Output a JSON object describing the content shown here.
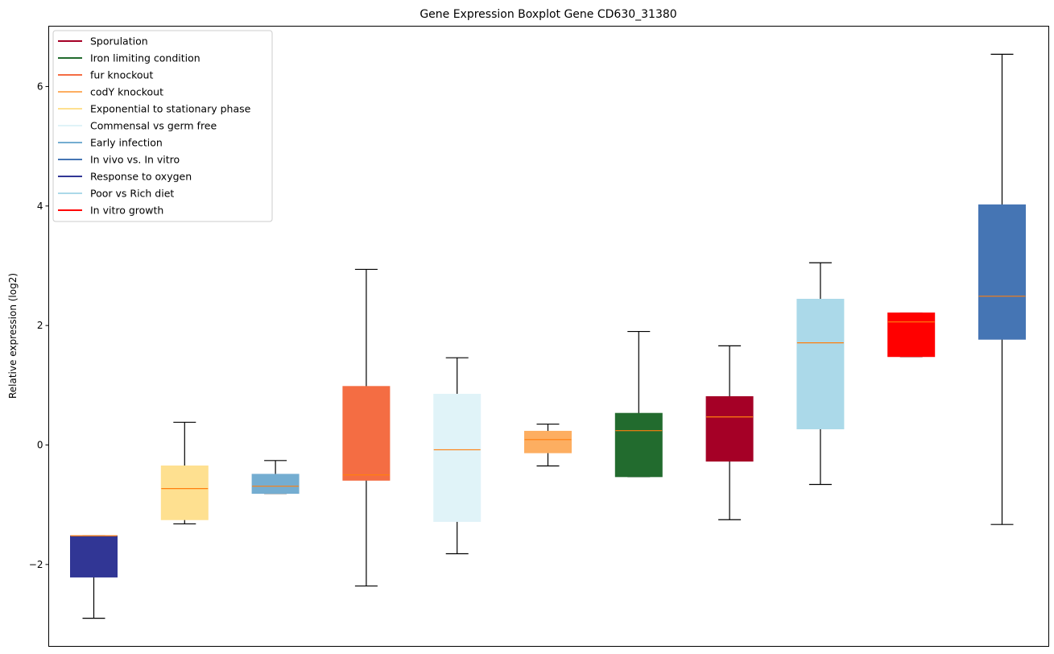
{
  "chart_data": {
    "type": "boxplot",
    "title": "Gene Expression Boxplot Gene CD630_31380",
    "xlabel": "",
    "ylabel": "Relative expression (log2)",
    "ylim": [
      -3.37,
      7.01
    ],
    "yticks": [
      -2,
      0,
      2,
      4,
      6
    ],
    "ytick_labels": [
      "−2",
      "0",
      "2",
      "4",
      "6"
    ],
    "grid": false,
    "legend_position": "top-left",
    "median_color": "#ff7f0e",
    "legend": [
      {
        "label": "Sporulation",
        "color": "#a50026"
      },
      {
        "label": "Iron limiting condition",
        "color": "#226b2e"
      },
      {
        "label": "fur knockout",
        "color": "#f46d43"
      },
      {
        "label": "codY knockout",
        "color": "#fdae61"
      },
      {
        "label": "Exponential to stationary phase",
        "color": "#fee090"
      },
      {
        "label": "Commensal vs germ free",
        "color": "#e0f3f8"
      },
      {
        "label": "Early infection",
        "color": "#74add1"
      },
      {
        "label": "In vivo vs. In vitro",
        "color": "#4575b4"
      },
      {
        "label": "Response to oxygen",
        "color": "#313695"
      },
      {
        "label": "Poor vs Rich diet",
        "color": "#abd9e9"
      },
      {
        "label": "In vitro growth",
        "color": "#ff0000"
      }
    ],
    "series": [
      {
        "name": "Response to oxygen",
        "color": "#313695",
        "whisker_low": -2.9,
        "q1": -2.21,
        "median": -1.52,
        "q3": -1.52,
        "whisker_high": -1.52
      },
      {
        "name": "Exponential to stationary phase",
        "color": "#fee090",
        "whisker_low": -1.32,
        "q1": -1.25,
        "median": -0.73,
        "q3": -0.35,
        "whisker_high": 0.38
      },
      {
        "name": "Early infection",
        "color": "#74add1",
        "whisker_low": -0.81,
        "q1": -0.81,
        "median": -0.69,
        "q3": -0.49,
        "whisker_high": -0.26
      },
      {
        "name": "fur knockout",
        "color": "#f46d43",
        "whisker_low": -2.36,
        "q1": -0.59,
        "median": -0.5,
        "q3": 0.98,
        "whisker_high": 2.94
      },
      {
        "name": "Commensal vs germ free",
        "color": "#e0f3f8",
        "whisker_low": -1.82,
        "q1": -1.28,
        "median": -0.08,
        "q3": 0.85,
        "whisker_high": 1.46
      },
      {
        "name": "codY knockout",
        "color": "#fdae61",
        "whisker_low": -0.35,
        "q1": -0.13,
        "median": 0.09,
        "q3": 0.23,
        "whisker_high": 0.35
      },
      {
        "name": "Iron limiting condition",
        "color": "#226b2e",
        "whisker_low": -0.53,
        "q1": -0.53,
        "median": 0.24,
        "q3": 0.53,
        "whisker_high": 1.9
      },
      {
        "name": "Sporulation",
        "color": "#a50026",
        "whisker_low": -1.25,
        "q1": -0.27,
        "median": 0.47,
        "q3": 0.81,
        "whisker_high": 1.66
      },
      {
        "name": "Poor vs Rich diet",
        "color": "#abd9e9",
        "whisker_low": -0.66,
        "q1": 0.27,
        "median": 1.71,
        "q3": 2.44,
        "whisker_high": 3.05
      },
      {
        "name": "In vitro growth",
        "color": "#ff0000",
        "whisker_low": 1.48,
        "q1": 1.48,
        "median": 2.06,
        "q3": 2.21,
        "whisker_high": 2.21
      },
      {
        "name": "In vivo vs. In vitro",
        "color": "#4575b4",
        "whisker_low": -1.33,
        "q1": 1.77,
        "median": 2.49,
        "q3": 4.02,
        "whisker_high": 6.54
      }
    ]
  }
}
